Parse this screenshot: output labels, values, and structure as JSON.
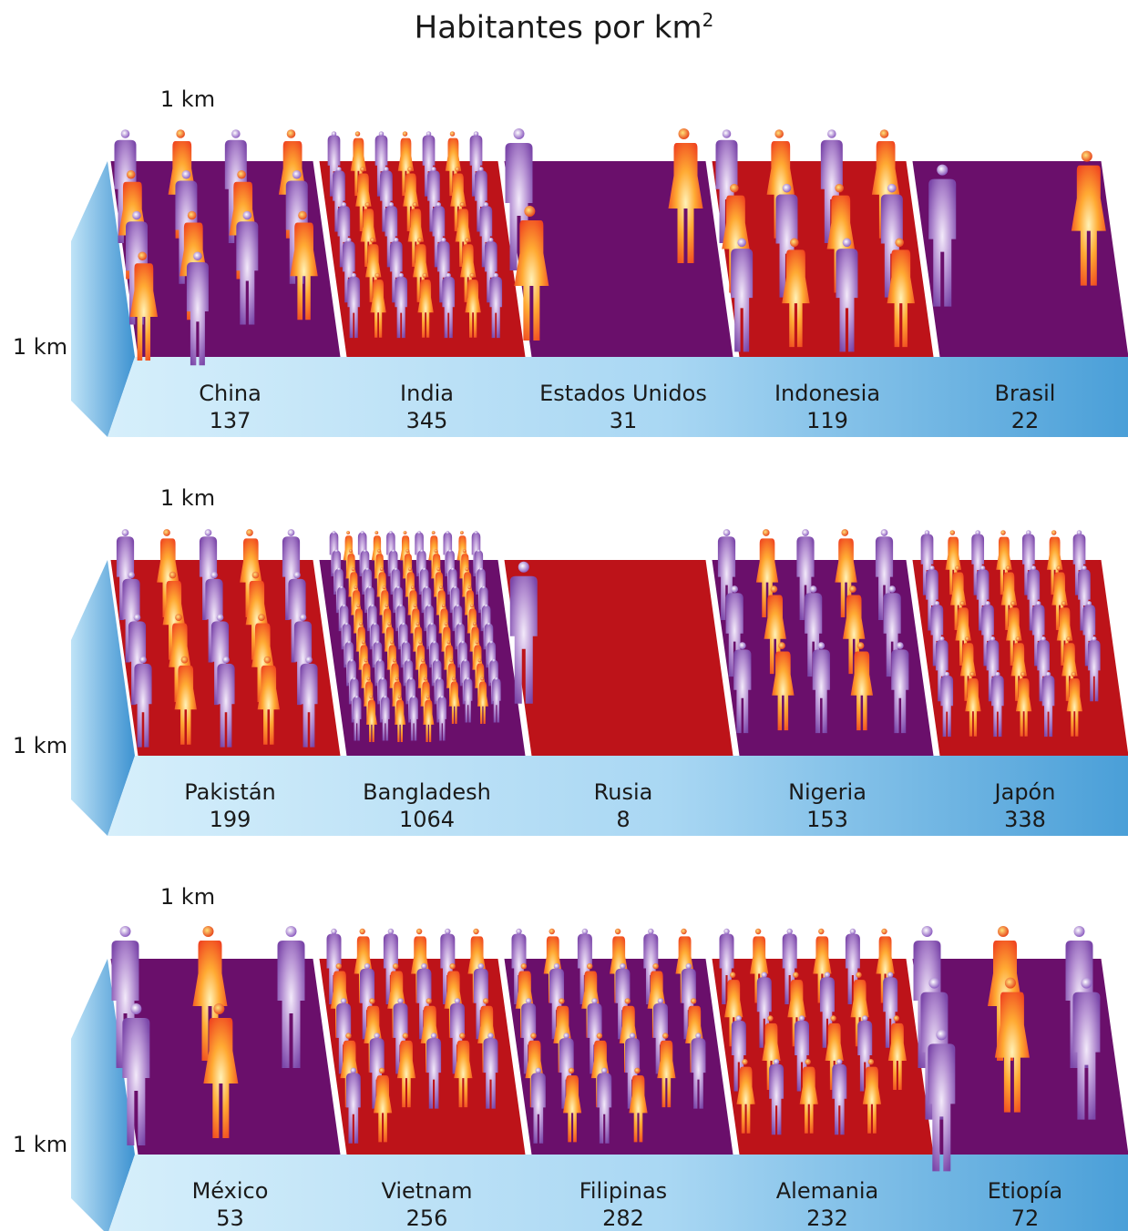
{
  "title": "Habitantes por km",
  "title_superscript": "2",
  "rows": [
    {
      "km_top": "1 km",
      "km_side": "1 km",
      "cells": [
        {
          "country": "China",
          "value": "137",
          "color": "#6a0f6b"
        },
        {
          "country": "India",
          "value": "345",
          "color": "#bd1319"
        },
        {
          "country": "Estados Unidos",
          "value": "31",
          "color": "#6a0f6b"
        },
        {
          "country": "Indonesia",
          "value": "119",
          "color": "#bd1319"
        },
        {
          "country": "Brasil",
          "value": "22",
          "color": "#6a0f6b"
        }
      ]
    },
    {
      "km_top": "1 km",
      "km_side": "1 km",
      "cells": [
        {
          "country": "Pakistán",
          "value": "199",
          "color": "#bd1319"
        },
        {
          "country": "Bangladesh",
          "value": "1064",
          "color": "#6a0f6b"
        },
        {
          "country": "Rusia",
          "value": "8",
          "color": "#bd1319"
        },
        {
          "country": "Nigeria",
          "value": "153",
          "color": "#6a0f6b"
        },
        {
          "country": "Japón",
          "value": "338",
          "color": "#bd1319"
        }
      ]
    },
    {
      "km_top": "1 km",
      "km_side": "1 km",
      "cells": [
        {
          "country": "México",
          "value": "53",
          "color": "#6a0f6b"
        },
        {
          "country": "Vietnam",
          "value": "256",
          "color": "#bd1319"
        },
        {
          "country": "Filipinas",
          "value": "282",
          "color": "#6a0f6b"
        },
        {
          "country": "Alemania",
          "value": "232",
          "color": "#bd1319"
        },
        {
          "country": "Etiopía",
          "value": "72",
          "color": "#6a0f6b"
        }
      ]
    }
  ]
}
